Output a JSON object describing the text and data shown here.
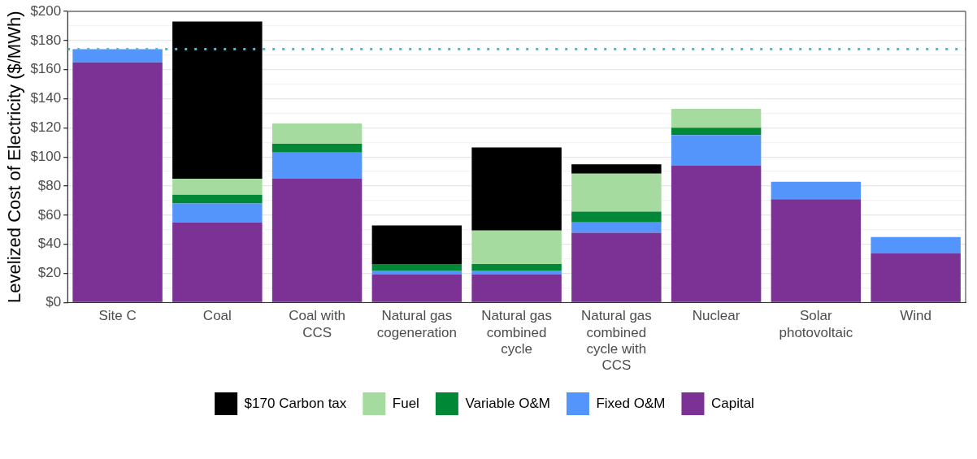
{
  "chart_data": {
    "type": "bar",
    "stacked": true,
    "ylabel": "Levelized Cost of Electricity ($/MWh)",
    "categories": [
      "Site C",
      "Coal",
      "Coal with CCS",
      "Natural gas cogeneration",
      "Natural gas combined cycle",
      "Natural gas combined cycle with CCS",
      "Nuclear",
      "Solar photovoltaic",
      "Wind"
    ],
    "series": [
      {
        "name": "Capital",
        "color": "#7b3294",
        "values": [
          165,
          55,
          85,
          19.5,
          19.5,
          48,
          94,
          71,
          34
        ]
      },
      {
        "name": "Fixed O&M",
        "color": "#5495fc",
        "values": [
          9,
          13,
          18,
          2.5,
          2.5,
          7,
          21,
          12,
          11
        ]
      },
      {
        "name": "Variable O&M",
        "color": "#008837",
        "values": [
          0,
          6,
          6,
          4.5,
          4.5,
          7.5,
          5,
          0,
          0
        ]
      },
      {
        "name": "Fuel",
        "color": "#a6dba0",
        "values": [
          0,
          11,
          14,
          0,
          23,
          26,
          13,
          0,
          0
        ]
      },
      {
        "name": "$170 Carbon tax",
        "color": "#000000",
        "values": [
          0,
          108,
          0,
          26.5,
          57,
          6.5,
          0,
          0,
          0
        ]
      }
    ],
    "ylim": [
      0,
      200
    ],
    "yticks": [
      {
        "value": 0,
        "label": "$0"
      },
      {
        "value": 10,
        "label": null
      },
      {
        "value": 20,
        "label": "$20"
      },
      {
        "value": 30,
        "label": null
      },
      {
        "value": 40,
        "label": "$40"
      },
      {
        "value": 50,
        "label": null
      },
      {
        "value": 60,
        "label": "$60"
      },
      {
        "value": 70,
        "label": null
      },
      {
        "value": 80,
        "label": "$80"
      },
      {
        "value": 90,
        "label": null
      },
      {
        "value": 100,
        "label": "$100"
      },
      {
        "value": 110,
        "label": null
      },
      {
        "value": 120,
        "label": "$120"
      },
      {
        "value": 130,
        "label": null
      },
      {
        "value": 140,
        "label": "$140"
      },
      {
        "value": 150,
        "label": null
      },
      {
        "value": 160,
        "label": "$160"
      },
      {
        "value": 170,
        "label": null
      },
      {
        "value": 180,
        "label": "$180"
      },
      {
        "value": 190,
        "label": null
      },
      {
        "value": 200,
        "label": "$200"
      }
    ],
    "ref_lines": [
      {
        "axis": "y",
        "value": 174,
        "color": "#29c5e6",
        "line_style": "dotted"
      }
    ],
    "grid": "y",
    "legend": "bottom"
  }
}
